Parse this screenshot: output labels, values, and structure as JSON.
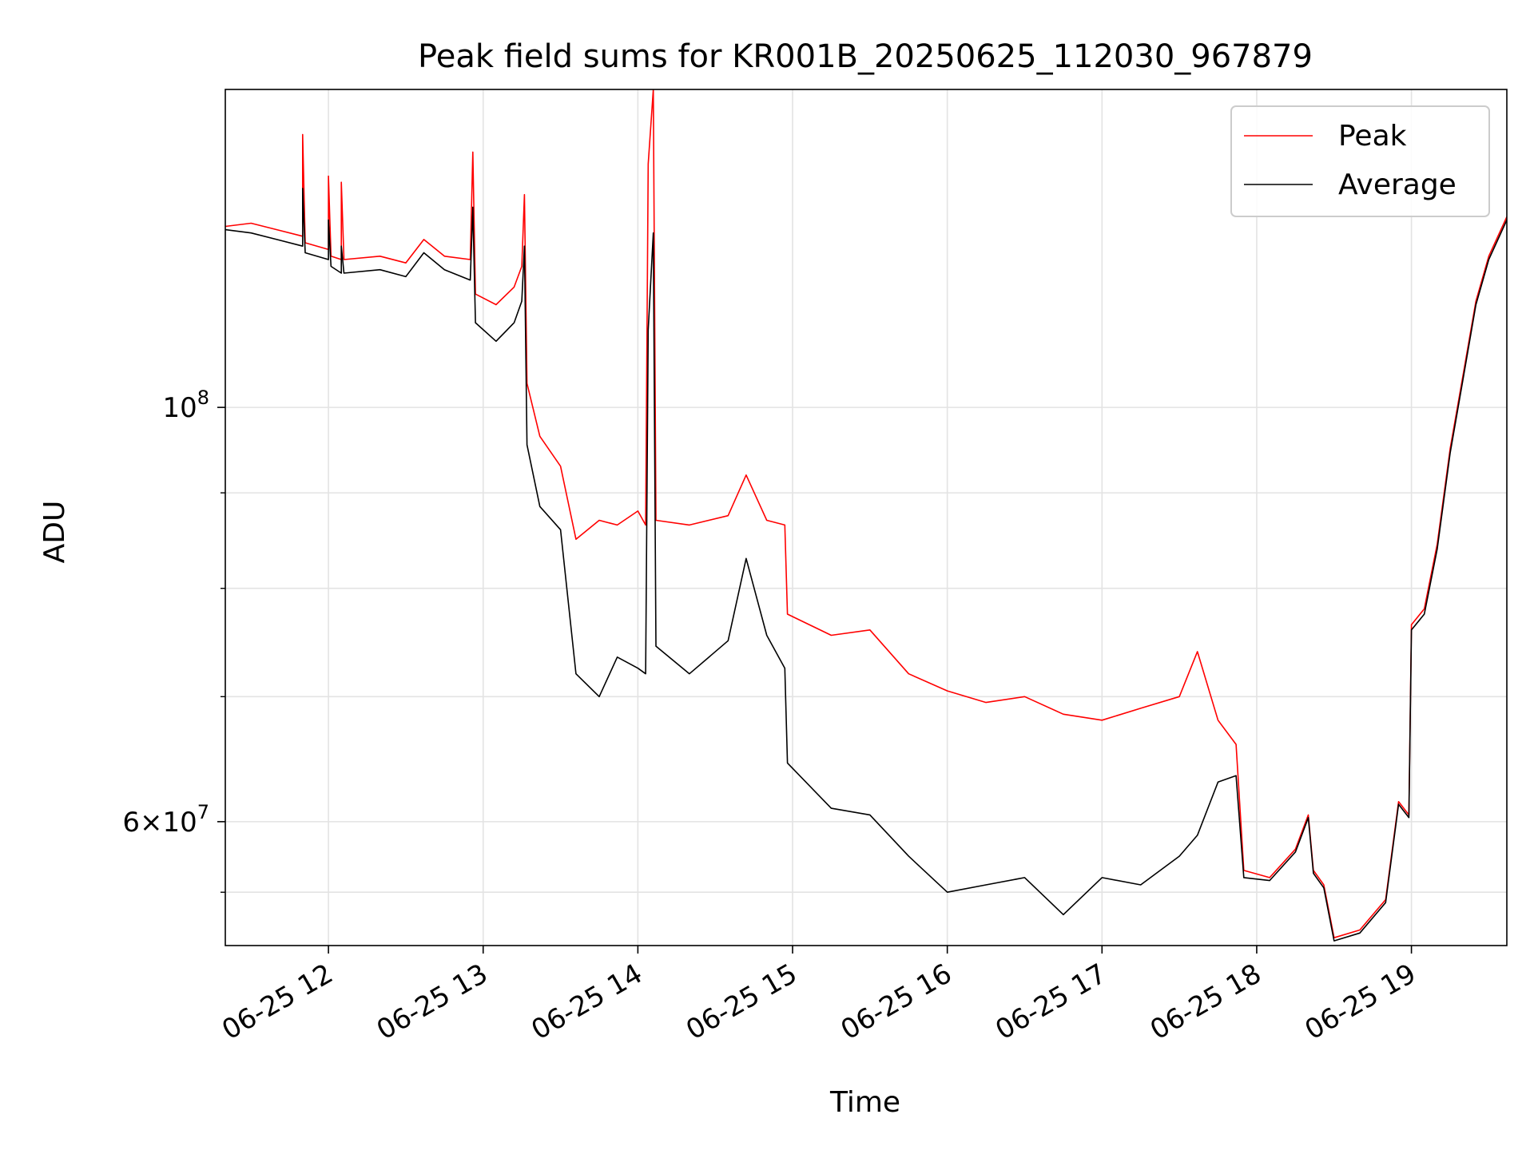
{
  "chart_data": {
    "type": "line",
    "title": "Peak field sums for KR001B_20250625_112030_967879",
    "xlabel": "Time",
    "ylabel": "ADU",
    "y_scale": "log",
    "grid": true,
    "legend_position": "top-right",
    "xlim": [
      "2025-06-25 11:20",
      "2025-06-25 19:37"
    ],
    "ylim": [
      51500000,
      148000000
    ],
    "x_ticks": [
      {
        "time": "2025-06-25 12:00",
        "label": "06-25 12"
      },
      {
        "time": "2025-06-25 13:00",
        "label": "06-25 13"
      },
      {
        "time": "2025-06-25 14:00",
        "label": "06-25 14"
      },
      {
        "time": "2025-06-25 15:00",
        "label": "06-25 15"
      },
      {
        "time": "2025-06-25 16:00",
        "label": "06-25 16"
      },
      {
        "time": "2025-06-25 17:00",
        "label": "06-25 17"
      },
      {
        "time": "2025-06-25 18:00",
        "label": "06-25 18"
      },
      {
        "time": "2025-06-25 19:00",
        "label": "06-25 19"
      }
    ],
    "y_major_ticks": [
      {
        "value": 100000000,
        "base": "10",
        "exp": "8"
      },
      {
        "value": 60000000,
        "mant": "6",
        "base": "10",
        "exp": "7"
      }
    ],
    "y_minor_ticks": [
      90000000,
      80000000,
      70000000,
      55000000
    ],
    "series": [
      {
        "name": "Peak",
        "color": "#ff0000",
        "points": [
          [
            "2025-06-25 11:20",
            125000000
          ],
          [
            "2025-06-25 11:30",
            125500000
          ],
          [
            "2025-06-25 11:40",
            124500000
          ],
          [
            "2025-06-25 11:50",
            123500000
          ],
          [
            "2025-06-25 11:50",
            140000000
          ],
          [
            "2025-06-25 11:51",
            122500000
          ],
          [
            "2025-06-25 12:00",
            121500000
          ],
          [
            "2025-06-25 12:00",
            133000000
          ],
          [
            "2025-06-25 12:01",
            120500000
          ],
          [
            "2025-06-25 12:05",
            120000000
          ],
          [
            "2025-06-25 12:05",
            132000000
          ],
          [
            "2025-06-25 12:06",
            120000000
          ],
          [
            "2025-06-25 12:20",
            120500000
          ],
          [
            "2025-06-25 12:30",
            119500000
          ],
          [
            "2025-06-25 12:37",
            123000000
          ],
          [
            "2025-06-25 12:45",
            120500000
          ],
          [
            "2025-06-25 12:55",
            120000000
          ],
          [
            "2025-06-25 12:56",
            137000000
          ],
          [
            "2025-06-25 12:57",
            115000000
          ],
          [
            "2025-06-25 13:05",
            113500000
          ],
          [
            "2025-06-25 13:12",
            116000000
          ],
          [
            "2025-06-25 13:15",
            119000000
          ],
          [
            "2025-06-25 13:16",
            130000000
          ],
          [
            "2025-06-25 13:17",
            103000000
          ],
          [
            "2025-06-25 13:22",
            96500000
          ],
          [
            "2025-06-25 13:30",
            93000000
          ],
          [
            "2025-06-25 13:36",
            85000000
          ],
          [
            "2025-06-25 13:45",
            87000000
          ],
          [
            "2025-06-25 13:52",
            86500000
          ],
          [
            "2025-06-25 14:00",
            88000000
          ],
          [
            "2025-06-25 14:03",
            86500000
          ],
          [
            "2025-06-25 14:04",
            135000000
          ],
          [
            "2025-06-25 14:06",
            148000000
          ],
          [
            "2025-06-25 14:07",
            87000000
          ],
          [
            "2025-06-25 14:20",
            86500000
          ],
          [
            "2025-06-25 14:35",
            87500000
          ],
          [
            "2025-06-25 14:42",
            92000000
          ],
          [
            "2025-06-25 14:50",
            87000000
          ],
          [
            "2025-06-25 14:57",
            86500000
          ],
          [
            "2025-06-25 14:58",
            77500000
          ],
          [
            "2025-06-25 15:15",
            75500000
          ],
          [
            "2025-06-25 15:30",
            76000000
          ],
          [
            "2025-06-25 15:45",
            72000000
          ],
          [
            "2025-06-25 16:00",
            70500000
          ],
          [
            "2025-06-25 16:15",
            69500000
          ],
          [
            "2025-06-25 16:30",
            70000000
          ],
          [
            "2025-06-25 16:45",
            68500000
          ],
          [
            "2025-06-25 17:00",
            68000000
          ],
          [
            "2025-06-25 17:15",
            69000000
          ],
          [
            "2025-06-25 17:30",
            70000000
          ],
          [
            "2025-06-25 17:37",
            74000000
          ],
          [
            "2025-06-25 17:45",
            68000000
          ],
          [
            "2025-06-25 17:52",
            66000000
          ],
          [
            "2025-06-25 17:55",
            56500000
          ],
          [
            "2025-06-25 18:05",
            56000000
          ],
          [
            "2025-06-25 18:15",
            58000000
          ],
          [
            "2025-06-25 18:20",
            60500000
          ],
          [
            "2025-06-25 18:22",
            56500000
          ],
          [
            "2025-06-25 18:26",
            55500000
          ],
          [
            "2025-06-25 18:30",
            52000000
          ],
          [
            "2025-06-25 18:40",
            52500000
          ],
          [
            "2025-06-25 18:50",
            54500000
          ],
          [
            "2025-06-25 18:55",
            61500000
          ],
          [
            "2025-06-25 18:59",
            60500000
          ],
          [
            "2025-06-25 19:00",
            76500000
          ],
          [
            "2025-06-25 19:05",
            78000000
          ],
          [
            "2025-06-25 19:10",
            84500000
          ],
          [
            "2025-06-25 19:15",
            95000000
          ],
          [
            "2025-06-25 19:20",
            104000000
          ],
          [
            "2025-06-25 19:25",
            114000000
          ],
          [
            "2025-06-25 19:30",
            120500000
          ],
          [
            "2025-06-25 19:37",
            126500000
          ]
        ]
      },
      {
        "name": "Average",
        "color": "#000000",
        "points": [
          [
            "2025-06-25 11:20",
            124500000
          ],
          [
            "2025-06-25 11:30",
            124000000
          ],
          [
            "2025-06-25 11:40",
            123000000
          ],
          [
            "2025-06-25 11:50",
            122000000
          ],
          [
            "2025-06-25 11:50",
            131000000
          ],
          [
            "2025-06-25 11:51",
            121000000
          ],
          [
            "2025-06-25 12:00",
            120000000
          ],
          [
            "2025-06-25 12:00",
            126000000
          ],
          [
            "2025-06-25 12:01",
            119000000
          ],
          [
            "2025-06-25 12:05",
            118000000
          ],
          [
            "2025-06-25 12:05",
            122000000
          ],
          [
            "2025-06-25 12:06",
            118000000
          ],
          [
            "2025-06-25 12:20",
            118500000
          ],
          [
            "2025-06-25 12:30",
            117500000
          ],
          [
            "2025-06-25 12:37",
            121000000
          ],
          [
            "2025-06-25 12:45",
            118500000
          ],
          [
            "2025-06-25 12:55",
            117000000
          ],
          [
            "2025-06-25 12:56",
            128000000
          ],
          [
            "2025-06-25 12:57",
            111000000
          ],
          [
            "2025-06-25 13:05",
            108500000
          ],
          [
            "2025-06-25 13:12",
            111000000
          ],
          [
            "2025-06-25 13:15",
            114000000
          ],
          [
            "2025-06-25 13:16",
            122000000
          ],
          [
            "2025-06-25 13:17",
            95500000
          ],
          [
            "2025-06-25 13:22",
            88500000
          ],
          [
            "2025-06-25 13:30",
            86000000
          ],
          [
            "2025-06-25 13:36",
            72000000
          ],
          [
            "2025-06-25 13:45",
            70000000
          ],
          [
            "2025-06-25 13:52",
            73500000
          ],
          [
            "2025-06-25 14:00",
            72500000
          ],
          [
            "2025-06-25 14:03",
            72000000
          ],
          [
            "2025-06-25 14:04",
            110000000
          ],
          [
            "2025-06-25 14:06",
            124000000
          ],
          [
            "2025-06-25 14:07",
            74500000
          ],
          [
            "2025-06-25 14:20",
            72000000
          ],
          [
            "2025-06-25 14:35",
            75000000
          ],
          [
            "2025-06-25 14:42",
            83000000
          ],
          [
            "2025-06-25 14:50",
            75500000
          ],
          [
            "2025-06-25 14:57",
            72500000
          ],
          [
            "2025-06-25 14:58",
            64500000
          ],
          [
            "2025-06-25 15:15",
            61000000
          ],
          [
            "2025-06-25 15:30",
            60500000
          ],
          [
            "2025-06-25 15:45",
            57500000
          ],
          [
            "2025-06-25 16:00",
            55000000
          ],
          [
            "2025-06-25 16:15",
            55500000
          ],
          [
            "2025-06-25 16:30",
            56000000
          ],
          [
            "2025-06-25 16:45",
            53500000
          ],
          [
            "2025-06-25 17:00",
            56000000
          ],
          [
            "2025-06-25 17:15",
            55500000
          ],
          [
            "2025-06-25 17:30",
            57500000
          ],
          [
            "2025-06-25 17:37",
            59000000
          ],
          [
            "2025-06-25 17:45",
            63000000
          ],
          [
            "2025-06-25 17:52",
            63500000
          ],
          [
            "2025-06-25 17:55",
            56000000
          ],
          [
            "2025-06-25 18:05",
            55800000
          ],
          [
            "2025-06-25 18:15",
            57800000
          ],
          [
            "2025-06-25 18:20",
            60300000
          ],
          [
            "2025-06-25 18:22",
            56300000
          ],
          [
            "2025-06-25 18:26",
            55300000
          ],
          [
            "2025-06-25 18:30",
            51800000
          ],
          [
            "2025-06-25 18:40",
            52300000
          ],
          [
            "2025-06-25 18:50",
            54300000
          ],
          [
            "2025-06-25 18:55",
            61300000
          ],
          [
            "2025-06-25 18:59",
            60300000
          ],
          [
            "2025-06-25 19:00",
            76000000
          ],
          [
            "2025-06-25 19:05",
            77500000
          ],
          [
            "2025-06-25 19:10",
            84000000
          ],
          [
            "2025-06-25 19:15",
            94500000
          ],
          [
            "2025-06-25 19:20",
            103500000
          ],
          [
            "2025-06-25 19:25",
            113500000
          ],
          [
            "2025-06-25 19:30",
            120000000
          ],
          [
            "2025-06-25 19:37",
            126000000
          ]
        ]
      }
    ]
  }
}
